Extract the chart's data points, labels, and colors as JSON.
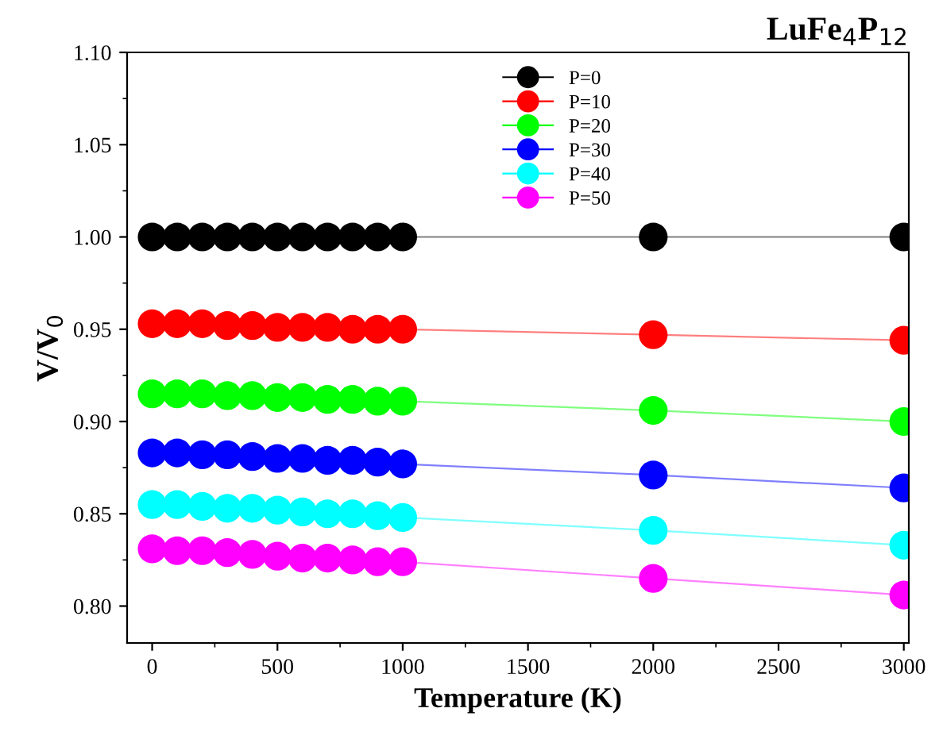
{
  "chart_data": {
    "type": "line",
    "title": "LuFe$_{4}$P$_{12}$",
    "xlabel": "Temperature (K)",
    "ylabel": "V/V$_{0}$",
    "x": [
      0,
      100,
      200,
      300,
      400,
      500,
      600,
      700,
      800,
      900,
      1000,
      2000,
      3000
    ],
    "series": [
      {
        "name": "P=0",
        "color": "#000000",
        "values": [
          1.0,
          1.0,
          1.0,
          1.0,
          1.0,
          1.0,
          1.0,
          1.0,
          1.0,
          1.0,
          1.0,
          1.0,
          1.0
        ]
      },
      {
        "name": "P=10",
        "color": "#ff0000",
        "values": [
          0.953,
          0.953,
          0.953,
          0.952,
          0.952,
          0.951,
          0.951,
          0.951,
          0.95,
          0.95,
          0.95,
          0.947,
          0.944
        ]
      },
      {
        "name": "P=20",
        "color": "#00ff00",
        "values": [
          0.915,
          0.915,
          0.915,
          0.914,
          0.914,
          0.913,
          0.913,
          0.912,
          0.912,
          0.911,
          0.911,
          0.906,
          0.9
        ]
      },
      {
        "name": "P=30",
        "color": "#0000ff",
        "values": [
          0.883,
          0.883,
          0.882,
          0.882,
          0.881,
          0.88,
          0.88,
          0.879,
          0.879,
          0.878,
          0.877,
          0.871,
          0.864
        ]
      },
      {
        "name": "P=40",
        "color": "#00ffff",
        "values": [
          0.855,
          0.855,
          0.854,
          0.853,
          0.853,
          0.852,
          0.851,
          0.85,
          0.85,
          0.849,
          0.848,
          0.841,
          0.833
        ]
      },
      {
        "name": "P=50",
        "color": "#ff00ff",
        "values": [
          0.831,
          0.83,
          0.83,
          0.829,
          0.828,
          0.827,
          0.826,
          0.826,
          0.825,
          0.824,
          0.824,
          0.815,
          0.806
        ]
      }
    ],
    "xlim": [
      -100,
      3020
    ],
    "ylim": [
      0.78,
      1.1
    ],
    "xticks": [
      0,
      500,
      1000,
      1500,
      2000,
      2500,
      3000
    ],
    "yticks": [
      {
        "value": 0.8,
        "label": "0.80"
      },
      {
        "value": 0.85,
        "label": "0.85"
      },
      {
        "value": 0.9,
        "label": "0.90"
      },
      {
        "value": 0.95,
        "label": "0.95"
      },
      {
        "value": 1.0,
        "label": "1.00"
      },
      {
        "value": 1.05,
        "label": "1.05"
      },
      {
        "value": 1.1,
        "label": "1.10"
      }
    ],
    "marker": "circle",
    "line_style": "solid",
    "legend": "top",
    "grid": false
  }
}
